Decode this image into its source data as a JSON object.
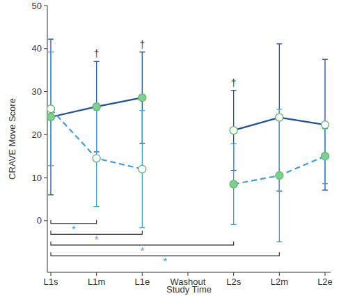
{
  "chart_data": {
    "type": "line",
    "x_label": "Study Time",
    "y_label": "CRAVE Move Score",
    "categories": [
      "L1s",
      "L1m",
      "L1e",
      "Washout",
      "L2s",
      "L2m",
      "L2e"
    ],
    "ylim": [
      -12,
      50
    ],
    "yticks": [
      0,
      10,
      20,
      30,
      40,
      50
    ],
    "grid": false,
    "series": [
      {
        "color": "#1f4fa0",
        "line_style": "solid",
        "marker": "filled-circle",
        "values": [
          24.1,
          26.5,
          28.6,
          null,
          null,
          null,
          null
        ],
        "errors": [
          18.1,
          10.5,
          10.6,
          null,
          null,
          null,
          null
        ]
      },
      {
        "color": "#1f4fa0",
        "line_style": "solid",
        "marker": "open-circle",
        "values": [
          null,
          null,
          null,
          null,
          21,
          24,
          22.3
        ],
        "errors": [
          null,
          null,
          null,
          null,
          9.3,
          17.1,
          15.2
        ]
      },
      {
        "color": "#3d9de0",
        "line_style": "dashed",
        "marker": "open-circle",
        "values": [
          26,
          14.5,
          12,
          null,
          null,
          null,
          null
        ],
        "errors": [
          13.2,
          11.2,
          13.6,
          null,
          null,
          null,
          null
        ]
      },
      {
        "color": "#3d9de0",
        "line_style": "dashed",
        "marker": "filled-circle",
        "values": [
          null,
          null,
          null,
          null,
          8.5,
          10.5,
          15
        ],
        "errors": [
          null,
          null,
          null,
          null,
          9.4,
          15.4,
          6.4
        ]
      }
    ],
    "annotations": [
      {
        "text": "†",
        "category": "L1m"
      },
      {
        "text": "†",
        "category": "L1e"
      },
      {
        "text": "†",
        "category": "L2s"
      }
    ],
    "brackets": [
      {
        "from": "L1s",
        "to": "L1m",
        "label": "*"
      },
      {
        "from": "L1s",
        "to": "L1e",
        "label": "*"
      },
      {
        "from": "L1s",
        "to": "L2s",
        "label": "*"
      },
      {
        "from": "L1s",
        "to": "L2m",
        "label": "*"
      }
    ]
  }
}
